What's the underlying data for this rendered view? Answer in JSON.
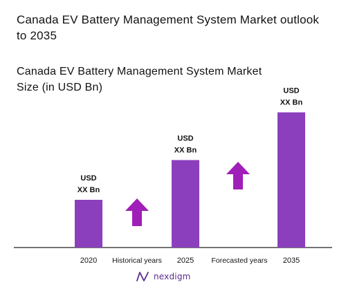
{
  "title": "Canada EV Battery Management System Market outlook to 2035",
  "subtitle": "Canada EV Battery Management System Market Size (in USD Bn)",
  "colors": {
    "bar": "#8b3fbd",
    "arrow": "#a01fb8",
    "axis": "#222222",
    "text": "#111111",
    "brand": "#5b2a8c"
  },
  "chart_data": {
    "type": "bar",
    "categories": [
      "2020",
      "2025",
      "2035"
    ],
    "values": [
      30,
      55,
      85
    ],
    "data_labels": [
      [
        "USD",
        "XX Bn"
      ],
      [
        "USD",
        "XX Bn"
      ],
      [
        "USD",
        "XX Bn"
      ]
    ],
    "period_labels": [
      "Historical years",
      "Forecasted years"
    ],
    "trend_arrows": [
      "up-arrow-icon",
      "up-arrow-icon"
    ],
    "values_note": "relative bar heights (values shown as USD XX Bn)",
    "ylim": [
      0,
      100
    ],
    "grid": false,
    "legend": "none"
  },
  "brand": {
    "icon": "nexdigm-logo-icon",
    "name": "nexdigm"
  }
}
